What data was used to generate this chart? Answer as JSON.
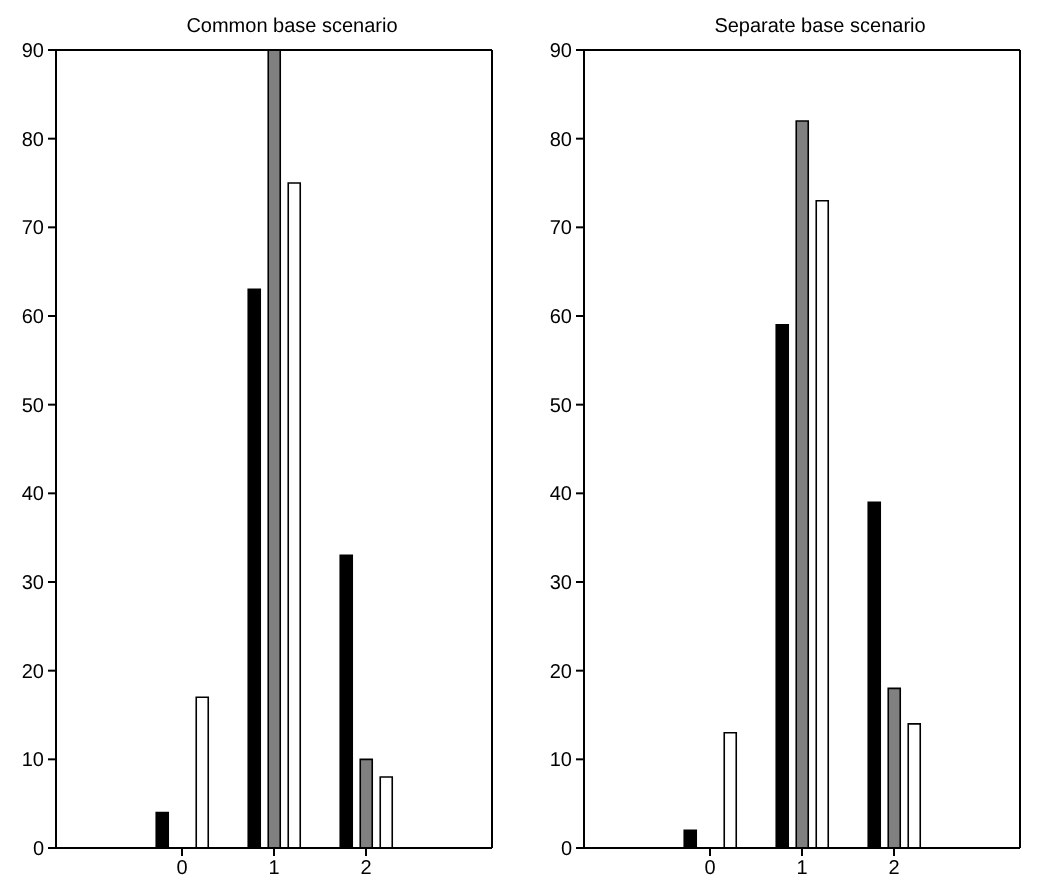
{
  "chart_data": [
    {
      "type": "bar",
      "title": "Common base scenario",
      "categories": [
        "0",
        "1",
        "2"
      ],
      "ylim": [
        0,
        90
      ],
      "yticks": [
        0,
        10,
        20,
        30,
        40,
        50,
        60,
        70,
        80,
        90
      ],
      "grid": false,
      "legend": false,
      "series": [
        {
          "color": "#000000",
          "values": [
            4,
            63,
            33
          ]
        },
        {
          "color": "#808080",
          "values": [
            0,
            90,
            10
          ]
        },
        {
          "color": "#ffffff",
          "values": [
            17,
            75,
            8
          ]
        }
      ]
    },
    {
      "type": "bar",
      "title": "Separate base scenario",
      "categories": [
        "0",
        "1",
        "2"
      ],
      "ylim": [
        0,
        90
      ],
      "yticks": [
        0,
        10,
        20,
        30,
        40,
        50,
        60,
        70,
        80,
        90
      ],
      "grid": false,
      "legend": false,
      "series": [
        {
          "color": "#000000",
          "values": [
            2,
            59,
            39
          ]
        },
        {
          "color": "#808080",
          "values": [
            0,
            82,
            18
          ]
        },
        {
          "color": "#ffffff",
          "values": [
            13,
            73,
            14
          ]
        }
      ]
    }
  ]
}
